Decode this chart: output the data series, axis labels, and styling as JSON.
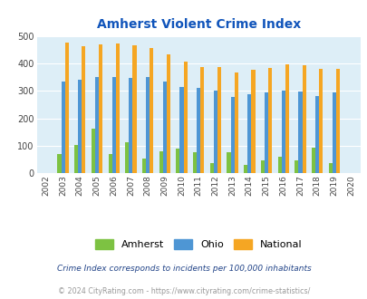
{
  "title": "Amherst Violent Crime Index",
  "years": [
    2002,
    2003,
    2004,
    2005,
    2006,
    2007,
    2008,
    2009,
    2010,
    2011,
    2012,
    2013,
    2014,
    2015,
    2016,
    2017,
    2018,
    2019,
    2020
  ],
  "amherst": [
    0,
    70,
    105,
    163,
    70,
    112,
    55,
    82,
    90,
    77,
    38,
    78,
    30,
    46,
    62,
    47,
    93,
    38,
    0
  ],
  "ohio": [
    0,
    335,
    340,
    352,
    352,
    347,
    350,
    333,
    315,
    310,
    300,
    278,
    289,
    295,
    300,
    298,
    280,
    294,
    0
  ],
  "national": [
    0,
    476,
    463,
    469,
    473,
    467,
    455,
    432,
    405,
    387,
    387,
    368,
    376,
    383,
    398,
    394,
    381,
    381,
    0
  ],
  "amherst_color": "#7dc242",
  "ohio_color": "#4e96d4",
  "national_color": "#f5a623",
  "bg_color": "#ddeef7",
  "grid_color": "#ffffff",
  "ylim": [
    0,
    500
  ],
  "yticks": [
    0,
    100,
    200,
    300,
    400,
    500
  ],
  "footnote1": "Crime Index corresponds to incidents per 100,000 inhabitants",
  "footnote2": "© 2024 CityRating.com - https://www.cityrating.com/crime-statistics/",
  "title_color": "#1155bb",
  "footnote1_color": "#224488",
  "footnote2_color": "#999999"
}
